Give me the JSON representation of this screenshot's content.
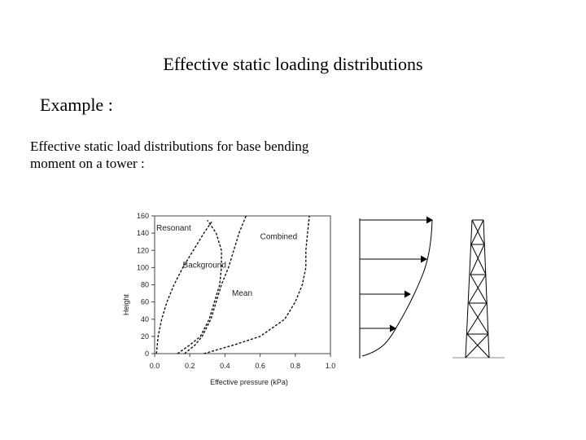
{
  "slide": {
    "title": "Effective static loading distributions",
    "example": "Example :",
    "description_line1": "Effective static load distributions for base bending",
    "description_line2": "moment on a tower :"
  },
  "chart_data": {
    "type": "line",
    "xlabel": "Effective pressure (kPa)",
    "ylabel": "Height",
    "xlim": [
      0.0,
      1.0
    ],
    "ylim": [
      0,
      160
    ],
    "xticks": [
      "0.0",
      "0.2",
      "0.4",
      "0.6",
      "0.8",
      "1.0"
    ],
    "yticks": [
      "0",
      "20",
      "40",
      "60",
      "80",
      "100",
      "120",
      "140",
      "160"
    ],
    "series": [
      {
        "name": "Resonant",
        "points": [
          [
            0.01,
            0
          ],
          [
            0.02,
            20
          ],
          [
            0.04,
            40
          ],
          [
            0.07,
            60
          ],
          [
            0.11,
            80
          ],
          [
            0.16,
            100
          ],
          [
            0.22,
            120
          ],
          [
            0.28,
            140
          ],
          [
            0.33,
            155
          ]
        ]
      },
      {
        "name": "Background",
        "points": [
          [
            0.13,
            0
          ],
          [
            0.2,
            10
          ],
          [
            0.26,
            20
          ],
          [
            0.31,
            40
          ],
          [
            0.34,
            60
          ],
          [
            0.37,
            80
          ],
          [
            0.38,
            100
          ],
          [
            0.38,
            120
          ],
          [
            0.35,
            140
          ],
          [
            0.3,
            155
          ]
        ]
      },
      {
        "name": "Mean",
        "points": [
          [
            0.17,
            0
          ],
          [
            0.23,
            10
          ],
          [
            0.27,
            20
          ],
          [
            0.32,
            40
          ],
          [
            0.35,
            60
          ],
          [
            0.38,
            80
          ],
          [
            0.42,
            100
          ],
          [
            0.45,
            120
          ],
          [
            0.48,
            140
          ],
          [
            0.52,
            160
          ]
        ]
      },
      {
        "name": "Combined",
        "points": [
          [
            0.28,
            0
          ],
          [
            0.45,
            10
          ],
          [
            0.6,
            20
          ],
          [
            0.74,
            40
          ],
          [
            0.8,
            60
          ],
          [
            0.84,
            80
          ],
          [
            0.86,
            100
          ],
          [
            0.86,
            120
          ],
          [
            0.87,
            140
          ],
          [
            0.88,
            160
          ]
        ]
      }
    ],
    "annotations": [
      "Resonant",
      "Background",
      "Mean",
      "Combined"
    ],
    "grid": false
  },
  "diagram": {
    "load_profile_icon": "load-distribution-arrows",
    "tower_icon": "lattice-tower"
  }
}
